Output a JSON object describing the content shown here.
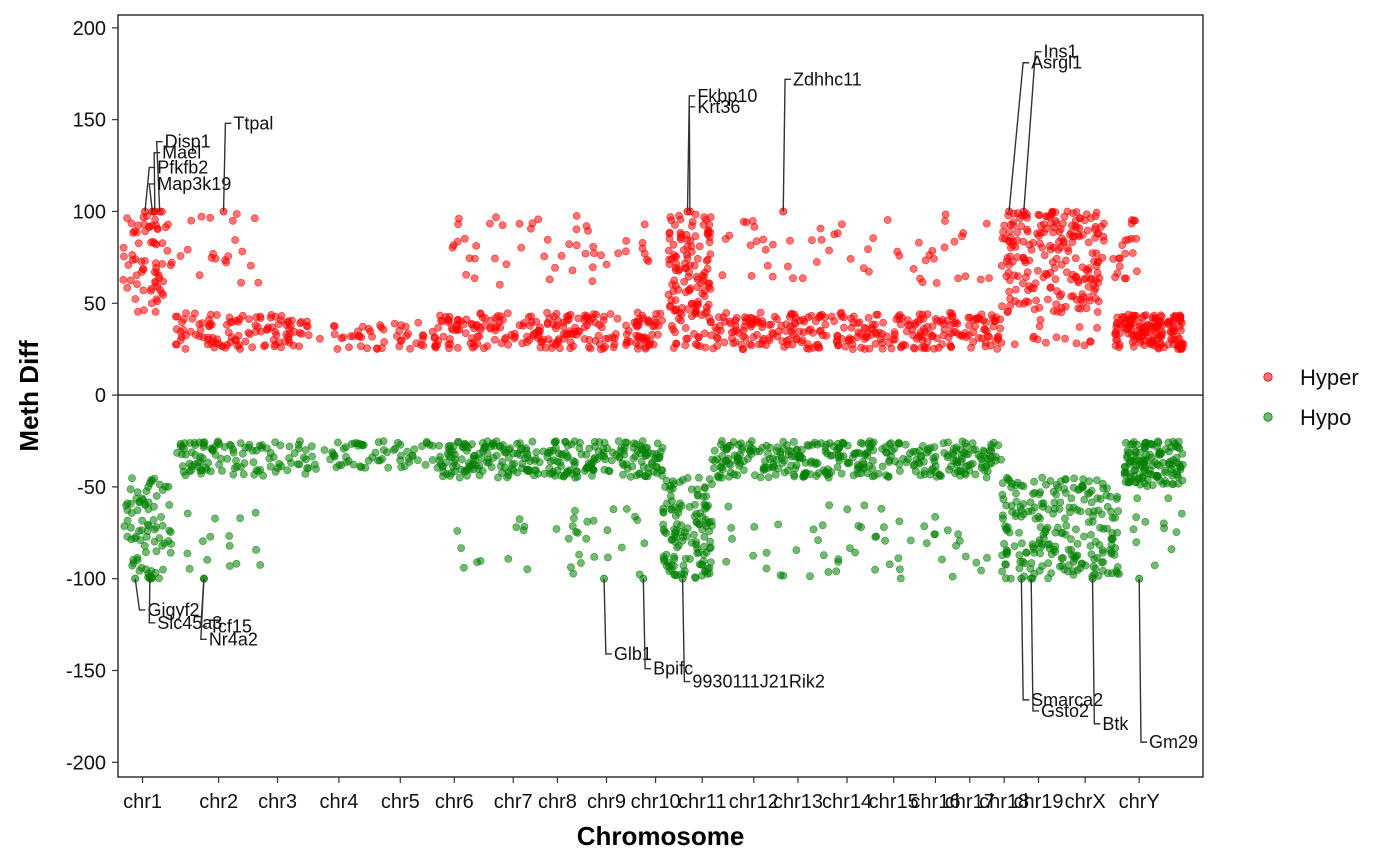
{
  "chart_data": {
    "type": "scatter",
    "xlabel": "Chromosome",
    "ylabel": "Meth Diff",
    "ylim": [
      -208,
      207
    ],
    "yticks": [
      200,
      150,
      100,
      50,
      0,
      -50,
      -100,
      -150,
      -200
    ],
    "ytick_labels": [
      "200",
      "150",
      "100",
      "50",
      "0",
      "-50",
      "-100",
      "-150",
      "-200"
    ],
    "xlim": [
      0.5,
      22.6
    ],
    "categories": [
      "chr1",
      "chr2",
      "chr3",
      "chr4",
      "chr5",
      "chr6",
      "chr7",
      "chr8",
      "chr9",
      "chr10",
      "chr11",
      "chr12",
      "chr13",
      "chr14",
      "chr15",
      "chr16",
      "chr17",
      "chr18",
      "chr19",
      "chrX",
      "chrY"
    ],
    "category_positions": [
      1.0,
      2.55,
      3.75,
      5.0,
      6.25,
      7.35,
      8.55,
      9.45,
      10.45,
      11.45,
      12.4,
      13.45,
      14.35,
      15.35,
      16.3,
      17.15,
      17.85,
      18.55,
      19.25,
      20.2,
      21.3
    ],
    "hline": 0,
    "legend": {
      "position": "right",
      "entries": [
        {
          "name": "Hyper",
          "color": "#ff0000"
        },
        {
          "name": "Hypo",
          "color": "#008000"
        }
      ]
    },
    "series_colors": {
      "Hyper": "#ff0000",
      "Hypo": "#008000"
    },
    "clusters": [
      {
        "series": "Hyper",
        "x": [
          0.6,
          1.6
        ],
        "y": [
          45,
          100
        ],
        "n": 70
      },
      {
        "series": "Hyper",
        "x": [
          1.6,
          2.4
        ],
        "y": [
          25,
          45
        ],
        "n": 25
      },
      {
        "series": "Hyper",
        "x": [
          1.7,
          3.4
        ],
        "y": [
          60,
          99
        ],
        "n": 20
      },
      {
        "series": "Hyper",
        "x": [
          2.3,
          4.4
        ],
        "y": [
          25,
          44
        ],
        "n": 90
      },
      {
        "series": "Hyper",
        "x": [
          4.6,
          6.8
        ],
        "y": [
          25,
          40
        ],
        "n": 45
      },
      {
        "series": "Hyper",
        "x": [
          6.9,
          11.6
        ],
        "y": [
          25,
          45
        ],
        "n": 230
      },
      {
        "series": "Hyper",
        "x": [
          7.3,
          11.6
        ],
        "y": [
          60,
          99
        ],
        "n": 50
      },
      {
        "series": "Hyper",
        "x": [
          11.7,
          12.6
        ],
        "y": [
          45,
          100
        ],
        "n": 110
      },
      {
        "series": "Hyper",
        "x": [
          11.7,
          12.6
        ],
        "y": [
          25,
          45
        ],
        "n": 30
      },
      {
        "series": "Hyper",
        "x": [
          12.6,
          18.5
        ],
        "y": [
          25,
          45
        ],
        "n": 300
      },
      {
        "series": "Hyper",
        "x": [
          12.8,
          18.3
        ],
        "y": [
          60,
          100
        ],
        "n": 55
      },
      {
        "series": "Hyper",
        "x": [
          18.5,
          20.5
        ],
        "y": [
          45,
          100
        ],
        "n": 210
      },
      {
        "series": "Hyper",
        "x": [
          18.5,
          20.5
        ],
        "y": [
          26,
          45
        ],
        "n": 15
      },
      {
        "series": "Hyper",
        "x": [
          20.5,
          21.3
        ],
        "y": [
          60,
          99
        ],
        "n": 25
      },
      {
        "series": "Hyper",
        "x": [
          20.8,
          22.2
        ],
        "y": [
          25,
          44
        ],
        "n": 150
      },
      {
        "series": "Hypo",
        "x": [
          0.6,
          1.6
        ],
        "y": [
          -100,
          -45
        ],
        "n": 80
      },
      {
        "series": "Hypo",
        "x": [
          1.7,
          4.6
        ],
        "y": [
          -44,
          -25
        ],
        "n": 110
      },
      {
        "series": "Hypo",
        "x": [
          1.8,
          3.4
        ],
        "y": [
          -100,
          -60
        ],
        "n": 15
      },
      {
        "series": "Hypo",
        "x": [
          4.7,
          7.0
        ],
        "y": [
          -40,
          -25
        ],
        "n": 60
      },
      {
        "series": "Hypo",
        "x": [
          7.0,
          11.6
        ],
        "y": [
          -45,
          -25
        ],
        "n": 280
      },
      {
        "series": "Hypo",
        "x": [
          7.4,
          11.4
        ],
        "y": [
          -100,
          -60
        ],
        "n": 35
      },
      {
        "series": "Hypo",
        "x": [
          11.6,
          12.6
        ],
        "y": [
          -100,
          -45
        ],
        "n": 130
      },
      {
        "series": "Hypo",
        "x": [
          12.6,
          18.5
        ],
        "y": [
          -45,
          -25
        ],
        "n": 330
      },
      {
        "series": "Hypo",
        "x": [
          12.8,
          18.3
        ],
        "y": [
          -100,
          -60
        ],
        "n": 55
      },
      {
        "series": "Hypo",
        "x": [
          18.5,
          20.9
        ],
        "y": [
          -100,
          -45
        ],
        "n": 230
      },
      {
        "series": "Hypo",
        "x": [
          21.0,
          22.2
        ],
        "y": [
          -50,
          -25
        ],
        "n": 130
      },
      {
        "series": "Hypo",
        "x": [
          20.9,
          22.2
        ],
        "y": [
          -95,
          -55
        ],
        "n": 12
      }
    ],
    "labeled_genes": [
      {
        "name": "Disp1",
        "series": "Hyper",
        "x": 1.35,
        "y": 100,
        "label_x": 1.45,
        "label_y": 138
      },
      {
        "name": "Mael",
        "series": "Hyper",
        "x": 1.25,
        "y": 100,
        "label_x": 1.4,
        "label_y": 132
      },
      {
        "name": "Pfkfb2",
        "series": "Hyper",
        "x": 1.05,
        "y": 100,
        "label_x": 1.3,
        "label_y": 124
      },
      {
        "name": "Map3k19",
        "series": "Hyper",
        "x": 1.2,
        "y": 100,
        "label_x": 1.3,
        "label_y": 115
      },
      {
        "name": "Ttpal",
        "series": "Hyper",
        "x": 2.65,
        "y": 100,
        "label_x": 2.85,
        "label_y": 148
      },
      {
        "name": "Fkbp10",
        "series": "Hyper",
        "x": 12.1,
        "y": 100,
        "label_x": 12.3,
        "label_y": 163
      },
      {
        "name": "Krt36",
        "series": "Hyper",
        "x": 12.15,
        "y": 100,
        "label_x": 12.3,
        "label_y": 157
      },
      {
        "name": "Zdhhc11",
        "series": "Hyper",
        "x": 14.05,
        "y": 100,
        "label_x": 14.25,
        "label_y": 172
      },
      {
        "name": "Ins1",
        "series": "Hyper",
        "x": 18.95,
        "y": 100,
        "label_x": 19.35,
        "label_y": 187
      },
      {
        "name": "Asrgl1",
        "series": "Hyper",
        "x": 18.65,
        "y": 100,
        "label_x": 19.1,
        "label_y": 181
      },
      {
        "name": "Gigyf2",
        "series": "Hypo",
        "x": 0.85,
        "y": -100,
        "label_x": 1.1,
        "label_y": -117
      },
      {
        "name": "Slc45a3",
        "series": "Hypo",
        "x": 1.15,
        "y": -100,
        "label_x": 1.3,
        "label_y": -124
      },
      {
        "name": "Tcf15",
        "series": "Hypo",
        "x": 2.25,
        "y": -100,
        "label_x": 2.35,
        "label_y": -126
      },
      {
        "name": "Nr4a2",
        "series": "Hypo",
        "x": 2.25,
        "y": -100,
        "label_x": 2.35,
        "label_y": -133
      },
      {
        "name": "Glb1",
        "series": "Hypo",
        "x": 10.4,
        "y": -100,
        "label_x": 10.6,
        "label_y": -141
      },
      {
        "name": "Bpifc",
        "series": "Hypo",
        "x": 11.2,
        "y": -100,
        "label_x": 11.4,
        "label_y": -149
      },
      {
        "name": "9930111J21Rik2",
        "series": "Hypo",
        "x": 12.0,
        "y": -100,
        "label_x": 12.2,
        "label_y": -156
      },
      {
        "name": "Smarca2",
        "series": "Hypo",
        "x": 18.9,
        "y": -100,
        "label_x": 19.1,
        "label_y": -166
      },
      {
        "name": "Gsto2",
        "series": "Hypo",
        "x": 19.1,
        "y": -100,
        "label_x": 19.3,
        "label_y": -172
      },
      {
        "name": "Btk",
        "series": "Hypo",
        "x": 20.35,
        "y": -100,
        "label_x": 20.55,
        "label_y": -179
      },
      {
        "name": "Gm29",
        "series": "Hypo",
        "x": 21.3,
        "y": -100,
        "label_x": 21.5,
        "label_y": -189
      }
    ]
  }
}
